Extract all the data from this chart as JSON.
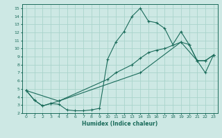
{
  "xlabel": "Humidex (Indice chaleur)",
  "bg_color": "#cde8e4",
  "grid_color": "#aad4cc",
  "line_color": "#1a6b5a",
  "xlim": [
    -0.5,
    23.5
  ],
  "ylim": [
    2,
    15.5
  ],
  "xticks": [
    0,
    1,
    2,
    3,
    4,
    5,
    6,
    7,
    8,
    9,
    10,
    11,
    12,
    13,
    14,
    15,
    16,
    17,
    18,
    19,
    20,
    21,
    22,
    23
  ],
  "yticks": [
    2,
    3,
    4,
    5,
    6,
    7,
    8,
    9,
    10,
    11,
    12,
    13,
    14,
    15
  ],
  "series": [
    {
      "x": [
        0,
        1,
        2,
        3,
        4,
        5,
        6,
        7,
        8,
        9,
        10,
        11,
        12,
        13,
        14,
        15,
        16,
        17,
        18,
        19,
        20,
        21,
        22,
        23
      ],
      "y": [
        4.8,
        3.6,
        2.9,
        3.2,
        3.1,
        2.4,
        2.3,
        2.3,
        2.4,
        2.6,
        8.7,
        10.8,
        12.1,
        14.0,
        15.0,
        13.4,
        13.2,
        12.5,
        10.5,
        12.1,
        10.5,
        8.5,
        7.0,
        9.2
      ]
    },
    {
      "x": [
        0,
        1,
        2,
        3,
        4,
        10,
        11,
        13,
        14,
        15,
        16,
        17,
        19,
        20,
        21,
        22,
        23
      ],
      "y": [
        4.8,
        3.6,
        2.9,
        3.2,
        3.5,
        6.2,
        7.0,
        8.0,
        8.8,
        9.5,
        9.8,
        10.0,
        10.8,
        10.5,
        8.5,
        8.5,
        9.2
      ]
    },
    {
      "x": [
        0,
        4,
        14,
        19,
        21,
        22,
        23
      ],
      "y": [
        4.8,
        3.5,
        7.0,
        10.8,
        8.5,
        8.5,
        9.2
      ]
    }
  ]
}
